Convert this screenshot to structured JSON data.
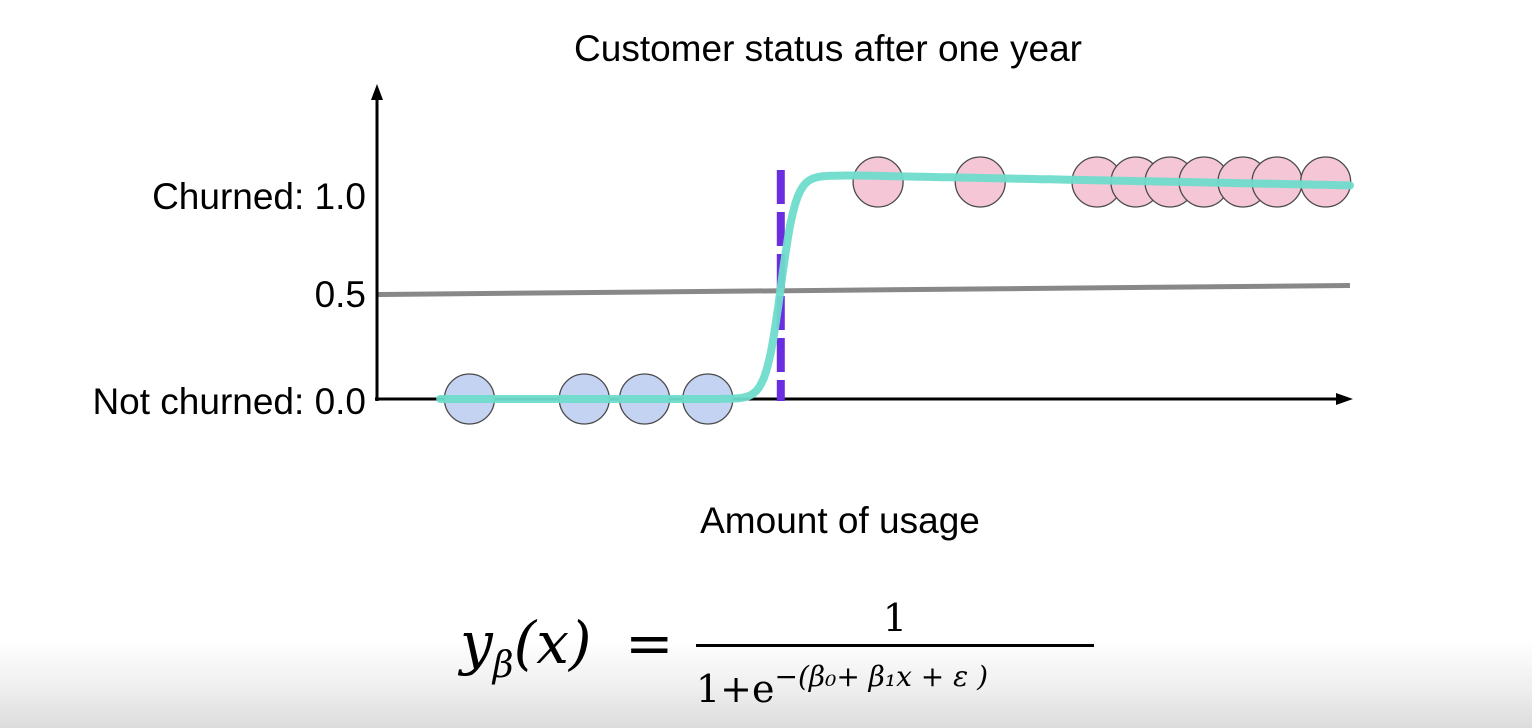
{
  "chart_data": {
    "type": "scatter",
    "title": "Customer status after one year",
    "xlabel": "Amount of usage",
    "ylabel": "",
    "y_ticks": [
      {
        "value": 0.0,
        "label": "Not churned: 0.0"
      },
      {
        "value": 0.5,
        "label": "0.5"
      },
      {
        "value": 1.0,
        "label": "Churned: 1.0"
      }
    ],
    "x_range": [
      0,
      100
    ],
    "y_range": [
      0,
      1.4
    ],
    "series": [
      {
        "class": "not churned",
        "color": "#c5d3f3",
        "points": [
          {
            "x": 9.5,
            "y": 0.0
          },
          {
            "x": 21.3,
            "y": 0.0
          },
          {
            "x": 27.5,
            "y": 0.0
          },
          {
            "x": 34.0,
            "y": 0.0
          }
        ]
      },
      {
        "class": "churned",
        "color": "#f4c6d6",
        "points": [
          {
            "x": 51.5,
            "y": 1.0
          },
          {
            "x": 62.0,
            "y": 1.0
          },
          {
            "x": 74.0,
            "y": 1.0
          },
          {
            "x": 78.0,
            "y": 1.0
          },
          {
            "x": 81.5,
            "y": 1.0
          },
          {
            "x": 85.0,
            "y": 1.0
          },
          {
            "x": 89.0,
            "y": 1.0
          },
          {
            "x": 92.5,
            "y": 1.0
          },
          {
            "x": 97.5,
            "y": 1.0
          }
        ]
      }
    ],
    "sigmoid": {
      "color": "#6fdccb",
      "midpoint_x": 41.5,
      "low": 0.0,
      "high": 1.03
    },
    "threshold_line": {
      "y": 0.5,
      "color": "#888888"
    },
    "decision_boundary": {
      "x": 41.5,
      "color": "#6a2ee0",
      "style": "dashed"
    },
    "grid": false
  },
  "formula": {
    "lhs_y": "y",
    "lhs_sub": "β",
    "lhs_arg": "(x)",
    "equals": "=",
    "numerator": "1",
    "den_base": "1+e",
    "den_exp": "−(β₀+ β₁x + ε )"
  }
}
